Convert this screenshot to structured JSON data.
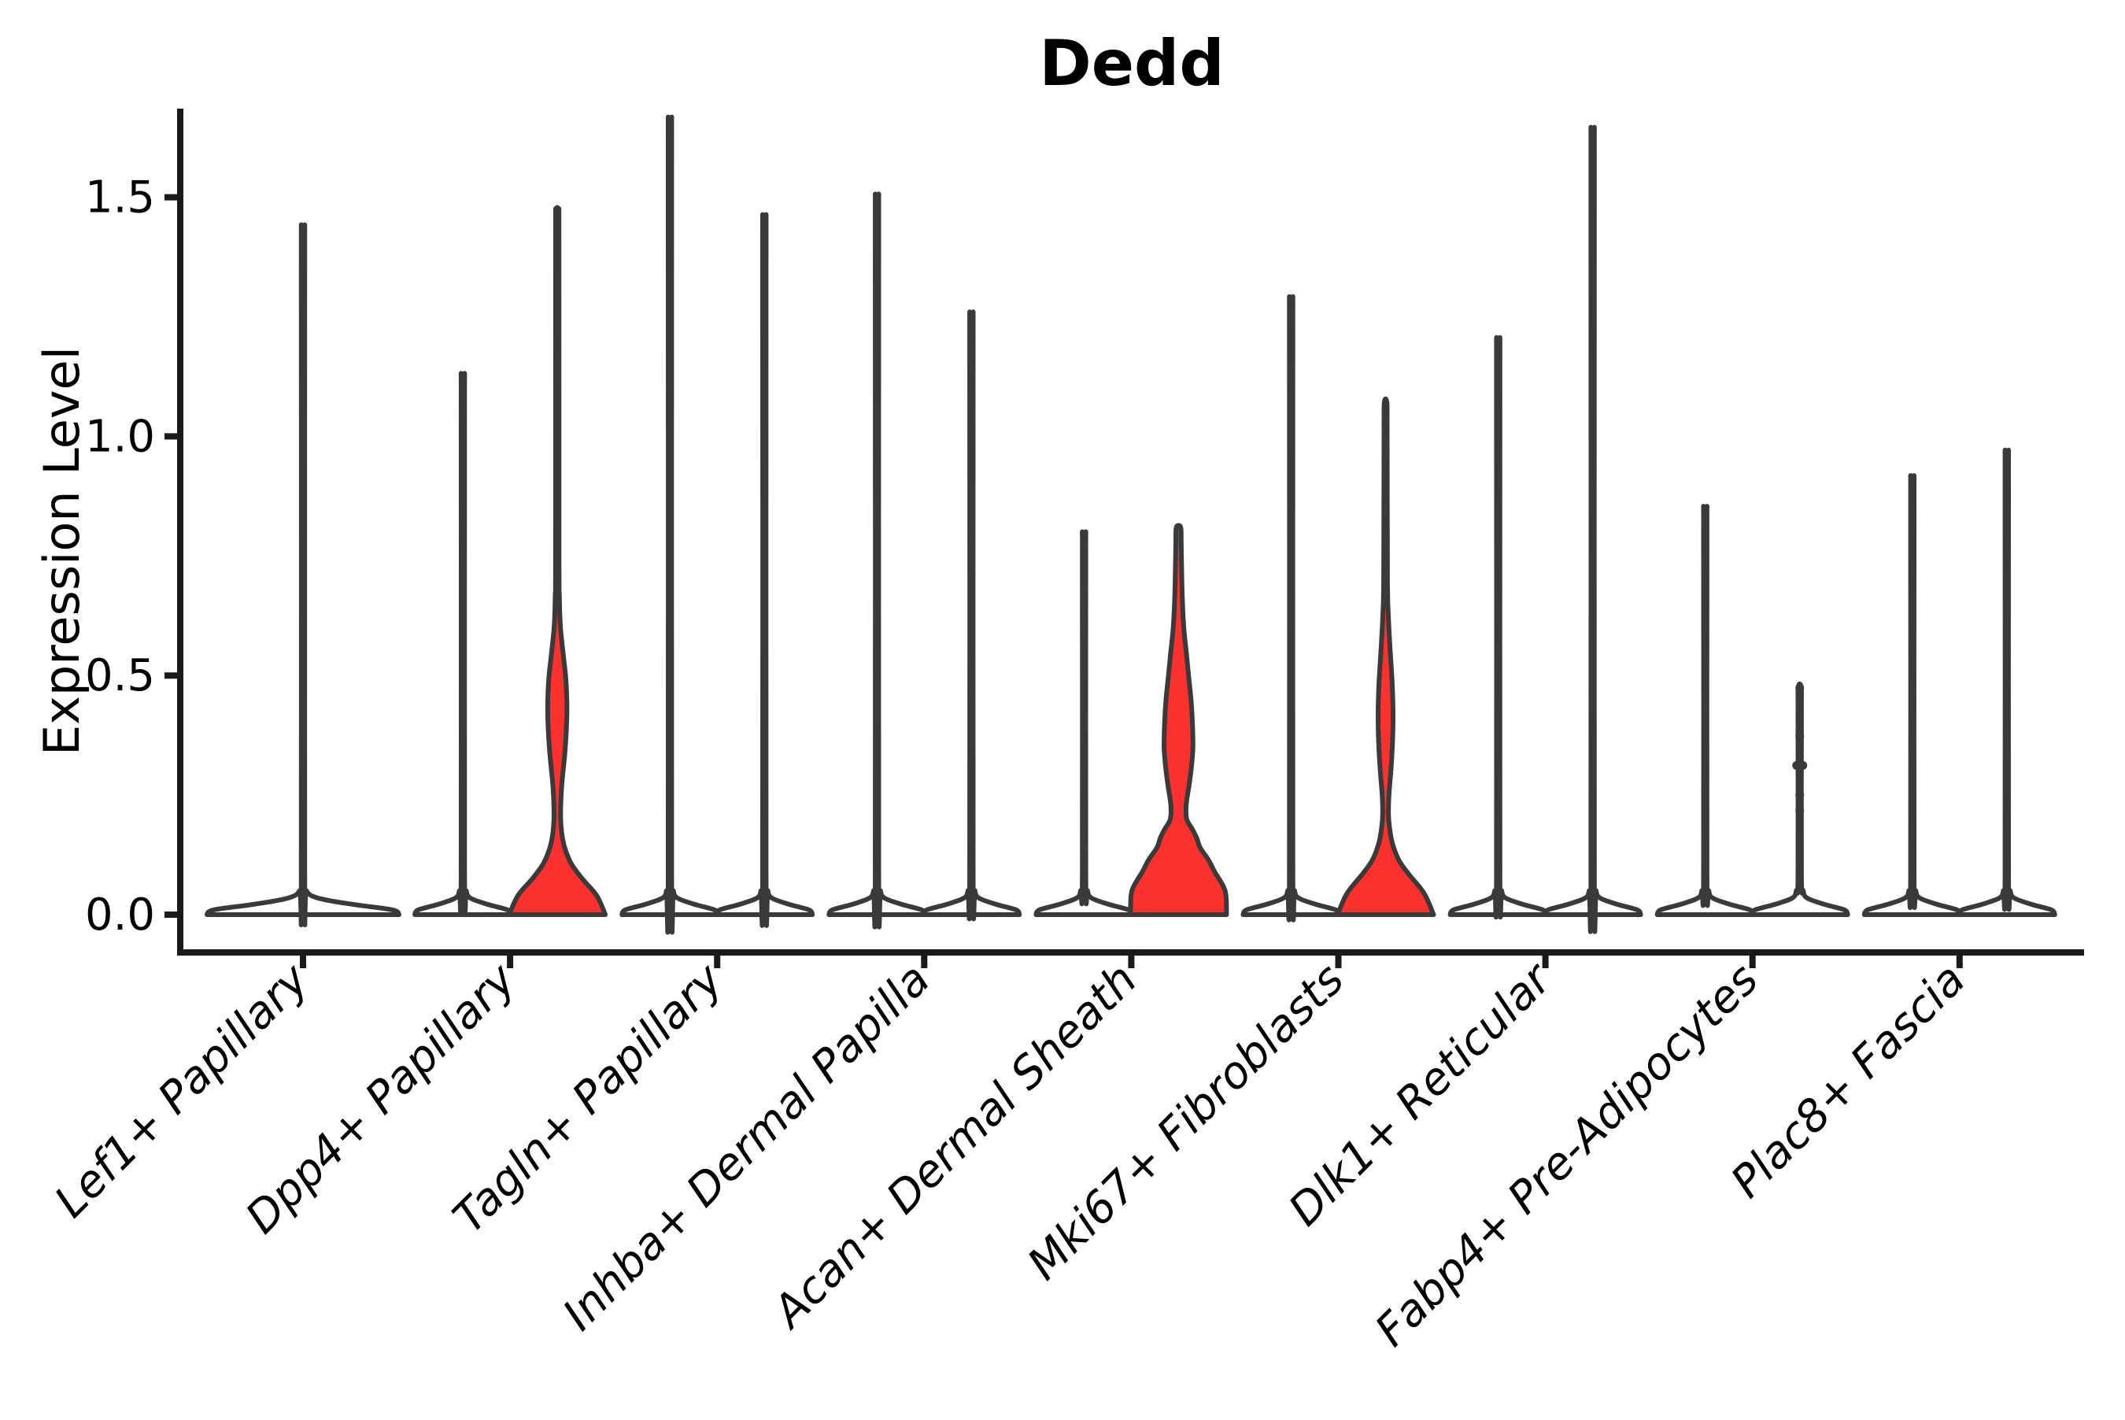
{
  "title": "Dedd",
  "y_axis": {
    "label": "Expression Level",
    "tick_labels": [
      "0.0",
      "0.5",
      "1.0",
      "1.5"
    ],
    "tick_values": [
      0,
      0.5,
      1.0,
      1.5
    ]
  },
  "x_axis": {
    "categories": [
      "Lef1+ Papillary",
      "Dpp4+ Papillary",
      "Tagln+ Papillary",
      "Inhba+ Dermal Papilla",
      "Acan+ Dermal Sheath",
      "Mki67+ Fibroblasts",
      "Dlk1+ Reticular",
      "Fabp4+ Pre-Adipocytes",
      "Plac8+ Fascia"
    ]
  },
  "colors": {
    "highlight_fill": "#FA312F",
    "default_fill": "#FFFFFF",
    "outline": "#3A3A3A",
    "axis": "#1A1A1A",
    "text": "#000000"
  },
  "chart_data": {
    "type": "violin",
    "title": "Dedd",
    "ylabel": "Expression Level",
    "ylim": [
      -0.08,
      1.68
    ],
    "yticks": [
      0,
      0.5,
      1.0,
      1.5
    ],
    "grid": false,
    "legend": "none",
    "categories": [
      "Lef1+ Papillary",
      "Dpp4+ Papillary",
      "Tagln+ Papillary",
      "Inhba+ Dermal Papilla",
      "Acan+ Dermal Sheath",
      "Mki67+ Fibroblasts",
      "Dlk1+ Reticular",
      "Fabp4+ Pre-Adipocytes",
      "Plac8+ Fascia"
    ],
    "violins": [
      {
        "category": "Lef1+ Papillary",
        "side": "center",
        "max": 1.39,
        "fill": "white",
        "profile": "flat",
        "dots": []
      },
      {
        "category": "Dpp4+ Papillary",
        "side": "left",
        "max": 1.1,
        "fill": "white",
        "profile": "flat",
        "dots": []
      },
      {
        "category": "Dpp4+ Papillary",
        "side": "right",
        "max": 1.47,
        "fill": "red",
        "profile": [
          [
            0,
            1
          ],
          [
            0.04,
            0.82
          ],
          [
            0.075,
            0.52
          ],
          [
            0.105,
            0.3
          ],
          [
            0.135,
            0.17
          ],
          [
            0.165,
            0.1
          ],
          [
            0.2,
            0.07
          ],
          [
            0.24,
            0.075
          ],
          [
            0.28,
            0.1
          ],
          [
            0.33,
            0.15
          ],
          [
            0.39,
            0.19
          ],
          [
            0.44,
            0.2
          ],
          [
            0.49,
            0.18
          ],
          [
            0.53,
            0.14
          ],
          [
            0.57,
            0.095
          ],
          [
            0.61,
            0.06
          ],
          [
            0.67,
            0.042
          ],
          [
            0.74,
            0.036
          ],
          [
            1.4,
            0.034
          ],
          [
            1.47,
            0.028
          ]
        ],
        "dots": []
      },
      {
        "category": "Tagln+ Papillary",
        "side": "left",
        "max": 1.6,
        "fill": "white",
        "profile": "flat",
        "dots": []
      },
      {
        "category": "Tagln+ Papillary",
        "side": "right",
        "max": 1.41,
        "fill": "white",
        "profile": "flat",
        "dots": []
      },
      {
        "category": "Inhba+ Dermal Papilla",
        "side": "left",
        "max": 1.45,
        "fill": "white",
        "profile": "flat",
        "dots": []
      },
      {
        "category": "Inhba+ Dermal Papilla",
        "side": "right",
        "max": 1.22,
        "fill": "white",
        "profile": "flat",
        "dots": []
      },
      {
        "category": "Acan+ Dermal Sheath",
        "side": "left",
        "max": 0.79,
        "fill": "white",
        "profile": "flat",
        "dots": []
      },
      {
        "category": "Acan+ Dermal Sheath",
        "side": "right",
        "max": 0.81,
        "fill": "red",
        "profile": [
          [
            0,
            1
          ],
          [
            0.05,
            0.97
          ],
          [
            0.09,
            0.75
          ],
          [
            0.115,
            0.62
          ],
          [
            0.14,
            0.45
          ],
          [
            0.16,
            0.38
          ],
          [
            0.18,
            0.28
          ],
          [
            0.2,
            0.17
          ],
          [
            0.23,
            0.16
          ],
          [
            0.27,
            0.22
          ],
          [
            0.31,
            0.27
          ],
          [
            0.35,
            0.3
          ],
          [
            0.4,
            0.29
          ],
          [
            0.45,
            0.26
          ],
          [
            0.5,
            0.21
          ],
          [
            0.55,
            0.16
          ],
          [
            0.6,
            0.11
          ],
          [
            0.66,
            0.08
          ],
          [
            0.72,
            0.065
          ],
          [
            0.78,
            0.055
          ],
          [
            0.81,
            0.045
          ]
        ],
        "dots": []
      },
      {
        "category": "Mki67+ Fibroblasts",
        "side": "left",
        "max": 1.25,
        "fill": "white",
        "profile": "flat",
        "dots": []
      },
      {
        "category": "Mki67+ Fibroblasts",
        "side": "right",
        "max": 1.07,
        "fill": "red",
        "profile": [
          [
            0,
            1
          ],
          [
            0.045,
            0.8
          ],
          [
            0.085,
            0.48
          ],
          [
            0.115,
            0.27
          ],
          [
            0.15,
            0.14
          ],
          [
            0.18,
            0.085
          ],
          [
            0.21,
            0.06
          ],
          [
            0.25,
            0.07
          ],
          [
            0.3,
            0.11
          ],
          [
            0.36,
            0.145
          ],
          [
            0.42,
            0.155
          ],
          [
            0.48,
            0.14
          ],
          [
            0.53,
            0.11
          ],
          [
            0.58,
            0.08
          ],
          [
            0.63,
            0.055
          ],
          [
            0.7,
            0.04
          ],
          [
            1.0,
            0.032
          ],
          [
            1.07,
            0.028
          ]
        ],
        "dots": []
      },
      {
        "category": "Dlk1+ Reticular",
        "side": "left",
        "max": 1.17,
        "fill": "white",
        "profile": "flat",
        "dots": []
      },
      {
        "category": "Dlk1+ Reticular",
        "side": "right",
        "max": 1.58,
        "fill": "white",
        "profile": "flat",
        "dots": []
      },
      {
        "category": "Fabp4+ Pre-Adipocytes",
        "side": "left",
        "max": 0.84,
        "fill": "white",
        "profile": "flat",
        "dots": []
      },
      {
        "category": "Fabp4+ Pre-Adipocytes",
        "side": "right",
        "max": 0.475,
        "fill": "white",
        "profile": "flat",
        "dots": [
          [
            0.474,
            0
          ],
          [
            0.373,
            0
          ],
          [
            0.312,
            -4
          ],
          [
            0.312,
            4
          ],
          [
            0.25,
            0
          ],
          [
            0.217,
            0
          ]
        ]
      },
      {
        "category": "Plac8+ Fascia",
        "side": "left",
        "max": 0.9,
        "fill": "white",
        "profile": "flat",
        "dots": []
      },
      {
        "category": "Plac8+ Fascia",
        "side": "right",
        "max": 0.95,
        "fill": "white",
        "profile": "flat",
        "dots": []
      }
    ]
  }
}
